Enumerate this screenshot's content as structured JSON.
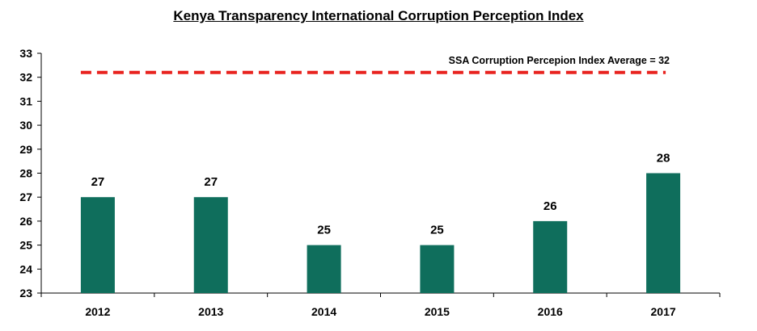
{
  "chart_data": {
    "type": "bar",
    "title": "Kenya Transparency International Corruption Perception Index",
    "categories": [
      "2012",
      "2013",
      "2014",
      "2015",
      "2016",
      "2017"
    ],
    "values": [
      27,
      27,
      25,
      25,
      26,
      28
    ],
    "data_labels": [
      "27",
      "27",
      "25",
      "25",
      "26",
      "28"
    ],
    "ylim": [
      23,
      33
    ],
    "yticks": [
      23,
      24,
      25,
      26,
      27,
      28,
      29,
      30,
      31,
      32,
      33
    ],
    "grid": false,
    "bar_color": "#0f6e5c",
    "reference_line": {
      "label": "SSA Corruption Percepion Index  Average = 32",
      "value": 32.2,
      "color": "#e8231f",
      "style": "dashed"
    }
  }
}
